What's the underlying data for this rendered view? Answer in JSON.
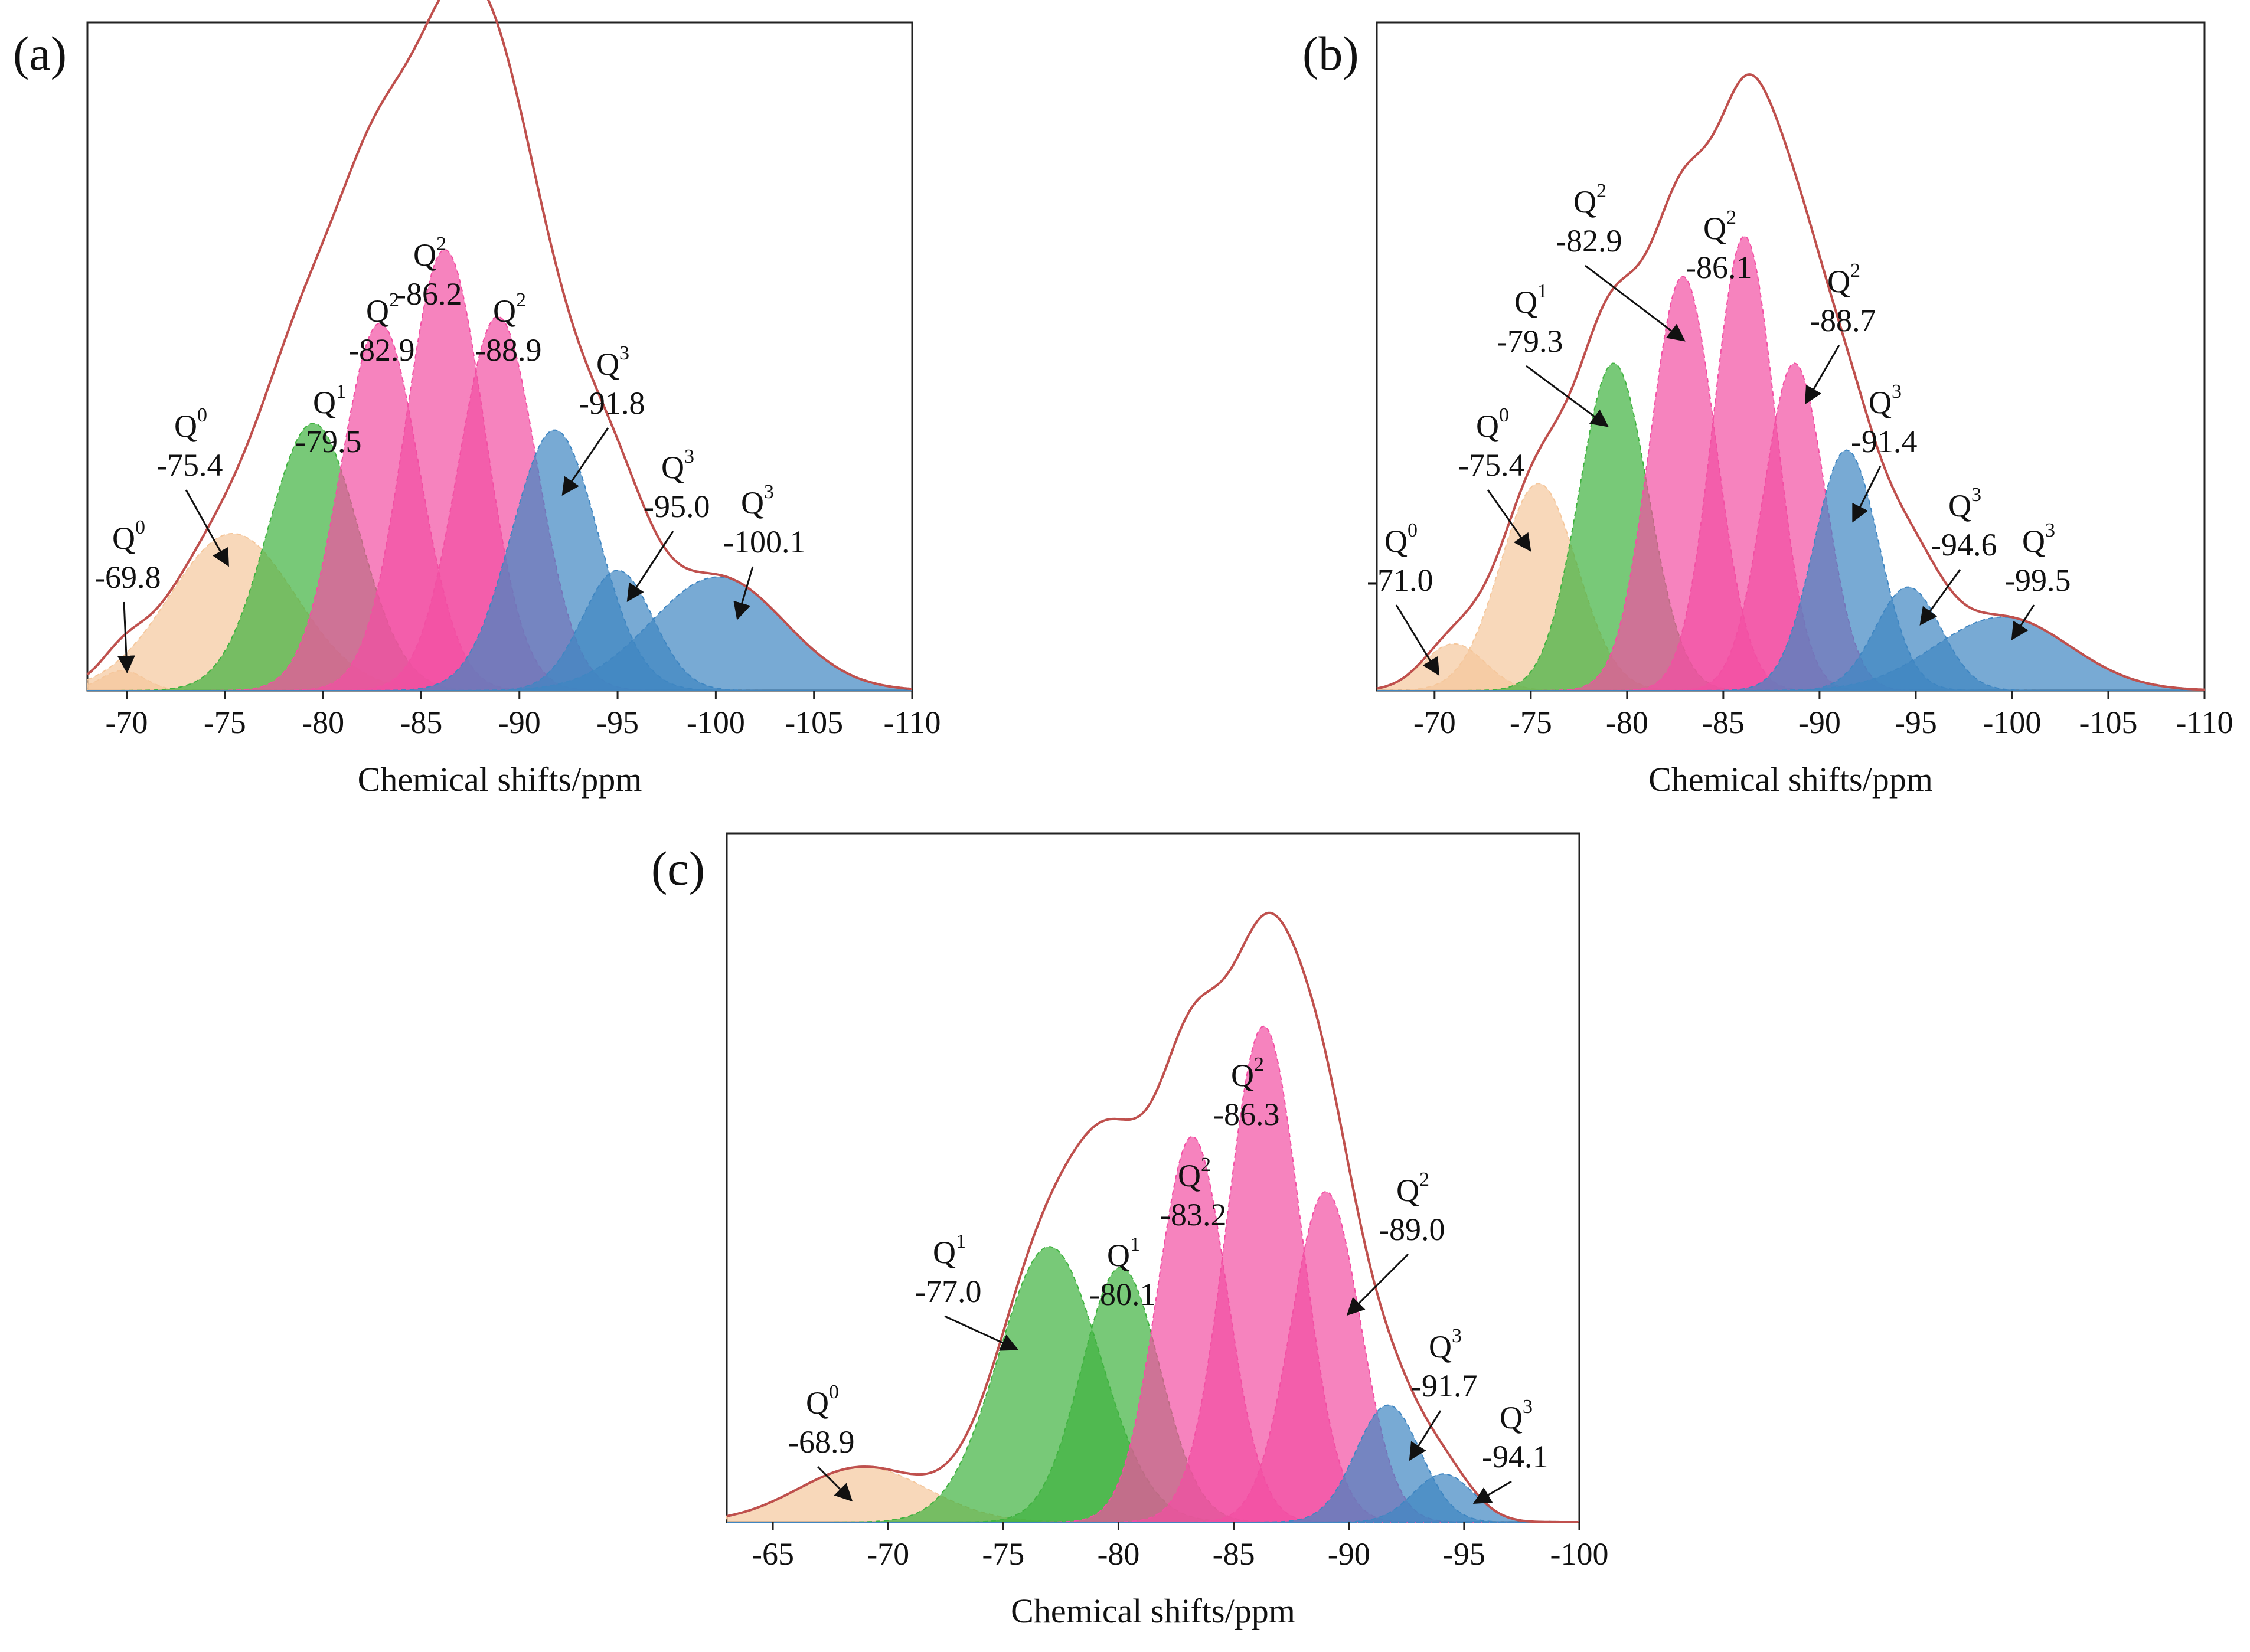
{
  "figure": {
    "panel_labels": [
      "(a)",
      "(b)",
      "(c)"
    ]
  },
  "chart_data": [
    {
      "id": "a",
      "type": "area",
      "label": "(a)",
      "xlabel": "Chemical shifts/ppm",
      "ylabel": "",
      "xlim": [
        -68,
        -110
      ],
      "xticks": [
        -70,
        -75,
        -80,
        -85,
        -90,
        -95,
        -100,
        -105,
        -110
      ],
      "tick_labels": [
        "-70",
        "-75",
        "-80",
        "-85",
        "-90",
        "-95",
        "-100",
        "-105",
        "-110"
      ],
      "ylim": [
        0,
        1.0
      ],
      "series": [
        {
          "name": "Q0",
          "center": -69.8,
          "height": 0.03,
          "width": 1.1,
          "color": "#f5c79c"
        },
        {
          "name": "Q0",
          "center": -75.4,
          "height": 0.235,
          "width": 3.2,
          "color": "#f5c79c"
        },
        {
          "name": "Q1",
          "center": -79.5,
          "height": 0.4,
          "width": 2.3,
          "color": "#3fb23f"
        },
        {
          "name": "Q2",
          "center": -82.9,
          "height": 0.55,
          "width": 2.0,
          "color": "#f24fa3"
        },
        {
          "name": "Q2",
          "center": -86.2,
          "height": 0.66,
          "width": 2.0,
          "color": "#f24fa3"
        },
        {
          "name": "Q2",
          "center": -88.9,
          "height": 0.56,
          "width": 2.0,
          "color": "#f24fa3"
        },
        {
          "name": "Q3",
          "center": -91.8,
          "height": 0.39,
          "width": 2.2,
          "color": "#3f86c2"
        },
        {
          "name": "Q3",
          "center": -95.0,
          "height": 0.18,
          "width": 1.8,
          "color": "#3f86c2"
        },
        {
          "name": "Q3",
          "center": -100.1,
          "height": 0.17,
          "width": 3.4,
          "color": "#3f86c2"
        }
      ],
      "annotations": [
        {
          "q": "Q",
          "sup": "0",
          "value": "-69.8",
          "target_x": -70.0
        },
        {
          "q": "Q",
          "sup": "0",
          "value": "-75.4",
          "target_x": -75.4
        },
        {
          "q": "Q",
          "sup": "1",
          "value": "-79.5",
          "target_x": -79.5
        },
        {
          "q": "Q",
          "sup": "2",
          "value": "-82.9",
          "target_x": -82.9
        },
        {
          "q": "Q",
          "sup": "2",
          "value": "-86.2",
          "target_x": -86.2
        },
        {
          "q": "Q",
          "sup": "2",
          "value": "-88.9",
          "target_x": -88.9
        },
        {
          "q": "Q",
          "sup": "3",
          "value": "-91.8",
          "target_x": -92.0
        },
        {
          "q": "Q",
          "sup": "3",
          "value": "-95.0",
          "target_x": -95.5
        },
        {
          "q": "Q",
          "sup": "3",
          "value": "-100.1",
          "target_x": -100.5
        }
      ],
      "envelope_color": "#c0504d"
    },
    {
      "id": "b",
      "type": "area",
      "label": "(b)",
      "xlabel": "Chemical shifts/ppm",
      "ylabel": "",
      "xlim": [
        -67,
        -110
      ],
      "xticks": [
        -70,
        -75,
        -80,
        -85,
        -90,
        -95,
        -100,
        -105,
        -110
      ],
      "tick_labels": [
        "-70",
        "-75",
        "-80",
        "-85",
        "-90",
        "-95",
        "-100",
        "-105",
        "-110"
      ],
      "ylim": [
        0,
        1.0
      ],
      "series": [
        {
          "name": "Q0",
          "center": -71.0,
          "height": 0.07,
          "width": 1.6,
          "color": "#f5c79c"
        },
        {
          "name": "Q0",
          "center": -75.4,
          "height": 0.31,
          "width": 2.0,
          "color": "#f5c79c"
        },
        {
          "name": "Q1",
          "center": -79.3,
          "height": 0.49,
          "width": 1.8,
          "color": "#3fb23f"
        },
        {
          "name": "Q2",
          "center": -82.9,
          "height": 0.62,
          "width": 1.7,
          "color": "#f24fa3"
        },
        {
          "name": "Q2",
          "center": -86.1,
          "height": 0.68,
          "width": 1.6,
          "color": "#f24fa3"
        },
        {
          "name": "Q2",
          "center": -88.7,
          "height": 0.49,
          "width": 1.6,
          "color": "#f24fa3"
        },
        {
          "name": "Q3",
          "center": -91.4,
          "height": 0.36,
          "width": 1.7,
          "color": "#3f86c2"
        },
        {
          "name": "Q3",
          "center": -94.6,
          "height": 0.155,
          "width": 1.7,
          "color": "#3f86c2"
        },
        {
          "name": "Q3",
          "center": -99.5,
          "height": 0.11,
          "width": 3.5,
          "color": "#3f86c2"
        }
      ],
      "annotations": [
        {
          "q": "Q",
          "sup": "0",
          "value": "-71.0",
          "target_x": -70.3
        },
        {
          "q": "Q",
          "sup": "0",
          "value": "-75.4",
          "target_x": -75.4
        },
        {
          "q": "Q",
          "sup": "1",
          "value": "-79.3",
          "target_x": -79.3
        },
        {
          "q": "Q",
          "sup": "2",
          "value": "-82.9",
          "target_x": -82.9
        },
        {
          "q": "Q",
          "sup": "2",
          "value": "-86.1",
          "target_x": -86.1
        },
        {
          "q": "Q",
          "sup": "2",
          "value": "-88.7",
          "target_x": -88.7
        },
        {
          "q": "Q",
          "sup": "3",
          "value": "-91.4",
          "target_x": -91.4
        },
        {
          "q": "Q",
          "sup": "3",
          "value": "-94.6",
          "target_x": -95.0
        },
        {
          "q": "Q",
          "sup": "3",
          "value": "-99.5",
          "target_x": -100.0
        }
      ],
      "envelope_color": "#c0504d"
    },
    {
      "id": "c",
      "type": "area",
      "label": "(c)",
      "xlabel": "Chemical shifts/ppm",
      "ylabel": "",
      "xlim": [
        -63,
        -100
      ],
      "xticks": [
        -65,
        -70,
        -75,
        -80,
        -85,
        -90,
        -95,
        -100
      ],
      "tick_labels": [
        "-65",
        "-70",
        "-75",
        "-80",
        "-85",
        "-90",
        "-95",
        "-100"
      ],
      "ylim": [
        0,
        1.0
      ],
      "series": [
        {
          "name": "Q0",
          "center": -68.9,
          "height": 0.08,
          "width": 2.8,
          "color": "#f5c79c"
        },
        {
          "name": "Q1",
          "center": -77.0,
          "height": 0.4,
          "width": 2.2,
          "color": "#3fb23f"
        },
        {
          "name": "Q1",
          "center": -80.1,
          "height": 0.37,
          "width": 1.7,
          "color": "#3fb23f"
        },
        {
          "name": "Q2",
          "center": -83.2,
          "height": 0.56,
          "width": 1.5,
          "color": "#f24fa3"
        },
        {
          "name": "Q2",
          "center": -86.3,
          "height": 0.72,
          "width": 1.6,
          "color": "#f24fa3"
        },
        {
          "name": "Q2",
          "center": -89.0,
          "height": 0.48,
          "width": 1.5,
          "color": "#f24fa3"
        },
        {
          "name": "Q3",
          "center": -91.7,
          "height": 0.17,
          "width": 1.4,
          "color": "#3f86c2"
        },
        {
          "name": "Q3",
          "center": -94.1,
          "height": 0.07,
          "width": 1.3,
          "color": "#3f86c2"
        }
      ],
      "annotations": [
        {
          "q": "Q",
          "sup": "0",
          "value": "-68.9",
          "target_x": -68.9
        },
        {
          "q": "Q",
          "sup": "1",
          "value": "-77.0",
          "target_x": -77.0
        },
        {
          "q": "Q",
          "sup": "1",
          "value": "-80.1",
          "target_x": -80.1
        },
        {
          "q": "Q",
          "sup": "2",
          "value": "-83.2",
          "target_x": -83.2
        },
        {
          "q": "Q",
          "sup": "2",
          "value": "-86.3",
          "target_x": -86.3
        },
        {
          "q": "Q",
          "sup": "2",
          "value": "-89.0",
          "target_x": -89.0
        },
        {
          "q": "Q",
          "sup": "3",
          "value": "-91.7",
          "target_x": -92.0
        },
        {
          "q": "Q",
          "sup": "3",
          "value": "-94.1",
          "target_x": -95.0
        }
      ],
      "envelope_color": "#c0504d"
    }
  ]
}
